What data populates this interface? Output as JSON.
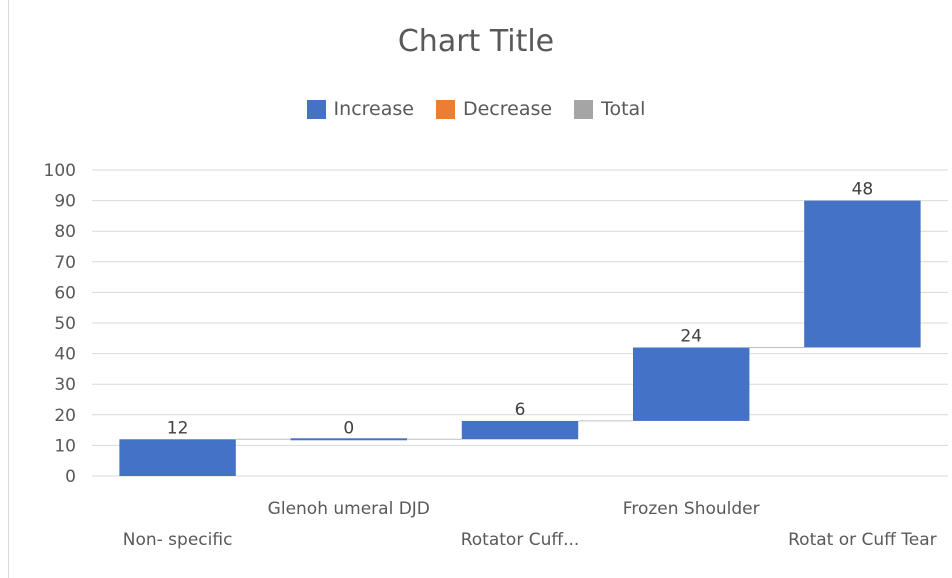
{
  "chart_data": {
    "type": "bar",
    "subtype": "waterfall",
    "title": "Chart Title",
    "categories": [
      "Non- specific",
      "Glenoh umeral DJD",
      "Rotator Cuff...",
      "Frozen Shoulder",
      "Rotat or Cuff Tear"
    ],
    "values": [
      12,
      0,
      6,
      24,
      48
    ],
    "data_labels": [
      "12",
      "0",
      "6",
      "24",
      "48"
    ],
    "ylim": [
      0,
      100
    ],
    "yticks": [
      0,
      10,
      20,
      30,
      40,
      50,
      60,
      70,
      80,
      90,
      100
    ],
    "grid": true,
    "legend": {
      "position": "top",
      "entries": [
        {
          "name": "Increase",
          "color": "#4472c4"
        },
        {
          "name": "Decrease",
          "color": "#ed7d31"
        },
        {
          "name": "Total",
          "color": "#a5a5a5"
        }
      ]
    }
  }
}
